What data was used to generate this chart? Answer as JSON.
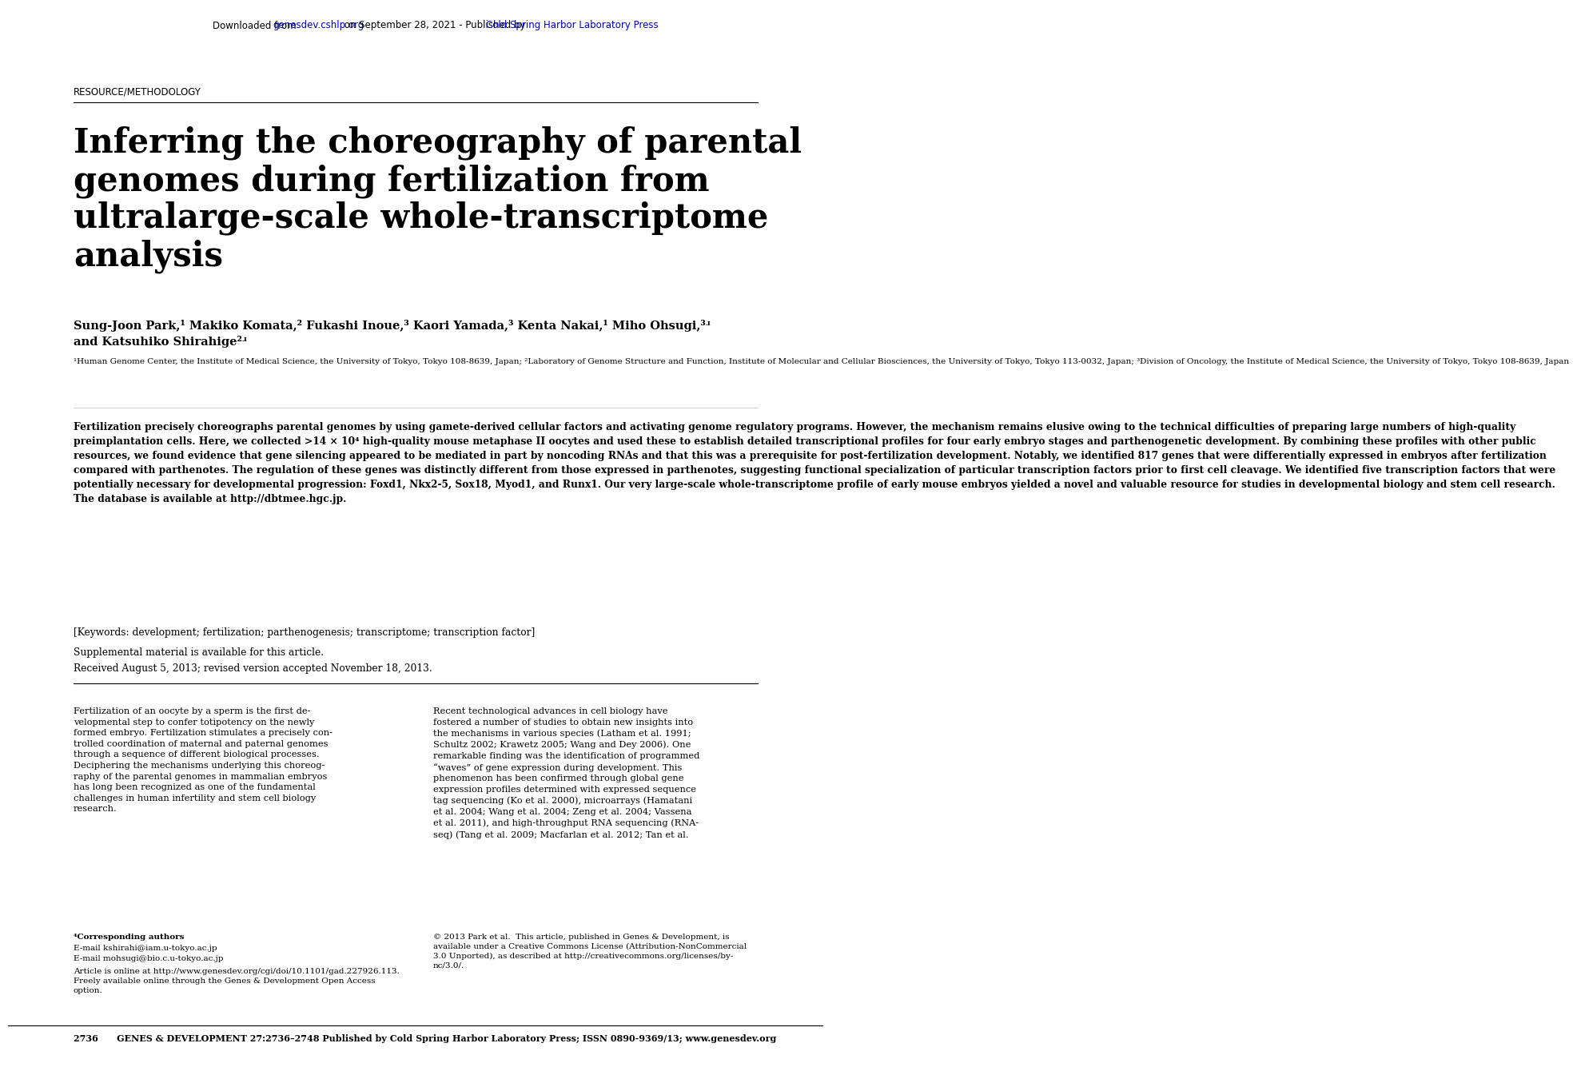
{
  "header_text": "Downloaded from genesdev.cshlp.org on September 28, 2021 - Published by Cold Spring Harbor Laboratory Press",
  "section_label": "RESOURCE/METHODOLOGY",
  "title_line1": "Inferring the choreography of parental",
  "title_line2": "genomes during fertilization from",
  "title_line3": "ultralarge-scale whole-transcriptome",
  "title_line4": "analysis",
  "authors_line1": "Sung-Joon Park,¹ Makiko Komata,² Fukashi Inoue,³ Kaori Yamada,³ Kenta Nakai,¹ Miho Ohsugi,³ʴ",
  "authors_line2": "and Katsuhiko Shirahige²ʴ",
  "affiliation": "¹Human Genome Center, the Institute of Medical Science, the University of Tokyo, Tokyo 108-8639, Japan; ²Laboratory of Genome Structure and Function, Institute of Molecular and Cellular Biosciences, the University of Tokyo, Tokyo 113-0032, Japan; ³Division of Oncology, the Institute of Medical Science, the University of Tokyo, Tokyo 108-8639, Japan",
  "keywords": "[Keywords: development; fertilization; parthenogenesis; transcriptome; transcription factor]",
  "supplemental": "Supplemental material is available for this article.",
  "received": "Received August 5, 2013; revised version accepted November 18, 2013.",
  "body_col1": "Fertilization of an oocyte by a sperm is the first de-\nvelopmental step to confer totipotency on the newly\nformed embryo. Fertilization stimulates a precisely con-\ntrolled coordination of maternal and paternal genomes\nthrough a sequence of different biological processes.\nDeciphering the mechanisms underlying this choreog-\nraphy of the parental genomes in mammalian embryos\nhas long been recognized as one of the fundamental\nchallenges in human infertility and stem cell biology\nresearch.",
  "body_col2": "Recent technological advances in cell biology have\nfostered a number of studies to obtain new insights into\nthe mechanisms in various species (Latham et al. 1991;\nSchultz 2002; Krawetz 2005; Wang and Dey 2006). One\nremarkable finding was the identification of programmed\n“waves” of gene expression during development. This\nphenomenon has been confirmed through global gene\nexpression profiles determined with expressed sequence\ntag sequencing (Ko et al. 2000), microarrays (Hamatani\net al. 2004; Wang et al. 2004; Zeng et al. 2004; Vassena\net al. 2011), and high-throughput RNA sequencing (RNA-\nseq) (Tang et al. 2009; Macfarlan et al. 2012; Tan et al.",
  "footnote_corresponding": "⁴Corresponding authors",
  "footnote_email1": "E-mail kshirahi@iam.u-tokyo.ac.jp",
  "footnote_email2": "E-mail mohsugi@bio.c.u-tokyo.ac.jp",
  "footnote_article": "Article is online at http://www.genesdev.org/cgi/doi/10.1101/gad.227926.113.\nFreely available online through the Genes & Development Open Access\noption.",
  "copyright": "© 2013 Park et al.  This article, published in Genes & Development, is\navailable under a Creative Commons License (Attribution-NonCommercial\n3.0 Unported), as described at http://creativecommons.org/licenses/by-\nnc/3.0/.",
  "footer": "2736      GENES & DEVELOPMENT 27:2736–2748 Published by Cold Spring Harbor Laboratory Press; ISSN 0890-9369/13; www.genesdev.org",
  "bg_color": "#ffffff",
  "text_color": "#000000",
  "link_color": "#0000cc"
}
